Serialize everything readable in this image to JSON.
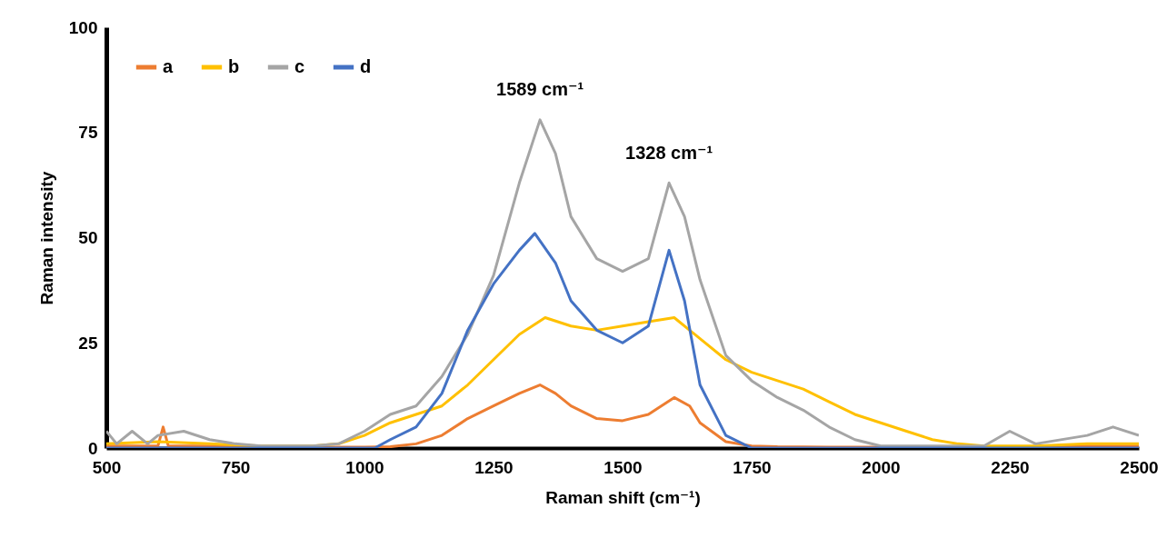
{
  "chart_data": {
    "type": "line",
    "xlabel": "Raman shift (cm⁻¹)",
    "ylabel": "Raman intensity",
    "xlim": [
      500,
      2500
    ],
    "xticks": [
      500,
      750,
      1000,
      1250,
      1500,
      1750,
      2000,
      2250,
      2500
    ],
    "ylim": [
      0,
      100
    ],
    "yticks": [
      0,
      25,
      50,
      75,
      100
    ],
    "legend": "top left",
    "annotations": [
      "1589 cm⁻¹",
      "1328 cm⁻¹"
    ],
    "series": [
      {
        "name": "a",
        "color": "#ed7d31",
        "x": [
          500,
          600,
          610,
          620,
          700,
          800,
          900,
          1000,
          1050,
          1100,
          1150,
          1200,
          1250,
          1300,
          1340,
          1370,
          1400,
          1450,
          1500,
          1550,
          1600,
          1630,
          1650,
          1700,
          1750,
          1800,
          1900,
          2000,
          2200,
          2400,
          2500
        ],
        "values": [
          0.5,
          0.5,
          5,
          0.5,
          0.5,
          0.3,
          0.2,
          0.2,
          0.3,
          1,
          3,
          7,
          10,
          13,
          15,
          13,
          10,
          7,
          6.5,
          8,
          12,
          10,
          6,
          1.5,
          0.5,
          0.3,
          0.2,
          0.2,
          0.2,
          0.5,
          0.5
        ]
      },
      {
        "name": "b",
        "color": "#ffc000",
        "x": [
          500,
          600,
          700,
          800,
          900,
          950,
          1000,
          1050,
          1100,
          1150,
          1200,
          1250,
          1300,
          1350,
          1400,
          1450,
          1500,
          1550,
          1600,
          1650,
          1700,
          1750,
          1800,
          1850,
          1900,
          1950,
          2000,
          2050,
          2100,
          2150,
          2200,
          2300,
          2400,
          2500
        ],
        "values": [
          1,
          1.5,
          1,
          0.5,
          0.5,
          1,
          3,
          6,
          8,
          10,
          15,
          21,
          27,
          31,
          29,
          28,
          29,
          30,
          31,
          26,
          21,
          18,
          16,
          14,
          11,
          8,
          6,
          4,
          2,
          1,
          0.5,
          0.5,
          1,
          1
        ]
      },
      {
        "name": "c",
        "color": "#a5a5a5",
        "x": [
          500,
          520,
          550,
          580,
          600,
          650,
          700,
          750,
          800,
          900,
          950,
          1000,
          1050,
          1100,
          1150,
          1200,
          1250,
          1300,
          1340,
          1370,
          1400,
          1450,
          1500,
          1550,
          1590,
          1620,
          1650,
          1700,
          1750,
          1800,
          1850,
          1900,
          1950,
          2000,
          2100,
          2200,
          2250,
          2300,
          2400,
          2450,
          2500
        ],
        "values": [
          4,
          1,
          4,
          1,
          3,
          4,
          2,
          1,
          0.5,
          0.5,
          1,
          4,
          8,
          10,
          17,
          27,
          41,
          63,
          78,
          70,
          55,
          45,
          42,
          45,
          63,
          55,
          40,
          22,
          16,
          12,
          9,
          5,
          2,
          0.5,
          0.5,
          0.5,
          4,
          1,
          3,
          5,
          3
        ]
      },
      {
        "name": "d",
        "color": "#4472c4",
        "x": [
          500,
          1000,
          1020,
          1050,
          1100,
          1150,
          1200,
          1250,
          1300,
          1330,
          1370,
          1400,
          1450,
          1500,
          1550,
          1590,
          1620,
          1650,
          1700,
          1750,
          2000,
          2500
        ],
        "values": [
          0,
          0,
          0,
          2,
          5,
          13,
          28,
          39,
          47,
          51,
          44,
          35,
          28,
          25,
          29,
          47,
          35,
          15,
          3,
          0,
          0,
          0
        ]
      }
    ]
  }
}
